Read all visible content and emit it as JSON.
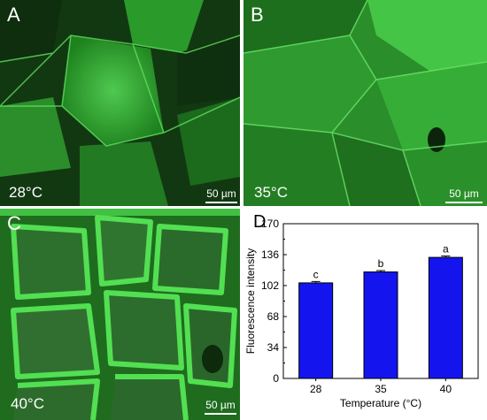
{
  "panels": [
    {
      "letter": "A",
      "temperature": "28°C",
      "scale": "50 µm"
    },
    {
      "letter": "B",
      "temperature": "35°C",
      "scale": "50 µm"
    },
    {
      "letter": "C",
      "temperature": "40°C",
      "scale": "50 µm"
    }
  ],
  "colors": {
    "fluorescence": "#2fc42f",
    "cell_dark": "#0d3a0d",
    "bar_fill": "#1414ee"
  },
  "chart_letter": "D",
  "chart_data": {
    "type": "bar",
    "categories": [
      "28",
      "35",
      "40"
    ],
    "values": [
      105,
      117,
      133
    ],
    "errors": [
      1.5,
      1.5,
      1.5
    ],
    "labels": [
      "c",
      "b",
      "a"
    ],
    "xlabel": "Temperature (°C)",
    "ylabel": "Fluorescence intensity",
    "ylim": [
      0,
      170
    ],
    "yticks": [
      "0",
      "34",
      "68",
      "102",
      "136",
      "170"
    ]
  }
}
